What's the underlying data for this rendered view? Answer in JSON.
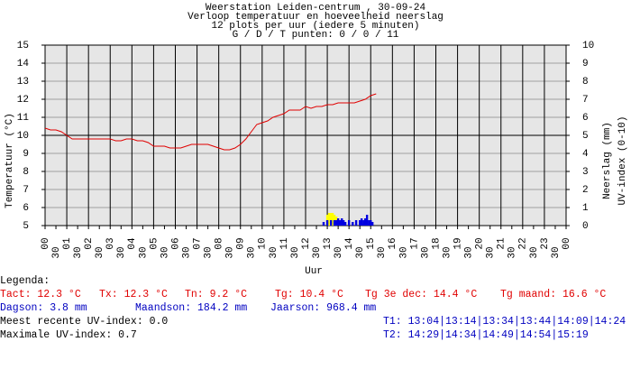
{
  "chart_data": {
    "type": "line",
    "title_lines": [
      "Weerstation Leiden-centrum , 30-09-24",
      "Verloop temperatuur en hoeveelheid neerslag",
      "12 plots per uur (iedere 5 minuten)",
      "G / D / T punten: 0 / 0 / 11"
    ],
    "x_label": "Uur",
    "y_label": "Temperatuur (°C)",
    "y2_labels": [
      "Neerslag (mm)",
      "UV-index (0-10)"
    ],
    "xlim": [
      0,
      24
    ],
    "xticks": [
      {
        "value": 0,
        "label": "00"
      },
      {
        "value": 0.5,
        "label": "30"
      },
      {
        "value": 1,
        "label": "01"
      },
      {
        "value": 1.5,
        "label": "30"
      },
      {
        "value": 2,
        "label": "02"
      },
      {
        "value": 2.5,
        "label": "30"
      },
      {
        "value": 3,
        "label": "03"
      },
      {
        "value": 3.5,
        "label": "30"
      },
      {
        "value": 4,
        "label": "04"
      },
      {
        "value": 4.5,
        "label": "30"
      },
      {
        "value": 5,
        "label": "05"
      },
      {
        "value": 5.5,
        "label": "30"
      },
      {
        "value": 6,
        "label": "06"
      },
      {
        "value": 6.5,
        "label": "30"
      },
      {
        "value": 7,
        "label": "07"
      },
      {
        "value": 7.5,
        "label": "30"
      },
      {
        "value": 8,
        "label": "08"
      },
      {
        "value": 8.5,
        "label": "30"
      },
      {
        "value": 9,
        "label": "09"
      },
      {
        "value": 9.5,
        "label": "30"
      },
      {
        "value": 10,
        "label": "10"
      },
      {
        "value": 10.5,
        "label": "30"
      },
      {
        "value": 11,
        "label": "11"
      },
      {
        "value": 11.5,
        "label": "30"
      },
      {
        "value": 12,
        "label": "12"
      },
      {
        "value": 12.5,
        "label": "30"
      },
      {
        "value": 13,
        "label": "13"
      },
      {
        "value": 13.5,
        "label": "30"
      },
      {
        "value": 14,
        "label": "14"
      },
      {
        "value": 14.5,
        "label": "30"
      },
      {
        "value": 15,
        "label": "15"
      },
      {
        "value": 15.5,
        "label": "30"
      },
      {
        "value": 16,
        "label": "16"
      },
      {
        "value": 16.5,
        "label": "30"
      },
      {
        "value": 17,
        "label": "17"
      },
      {
        "value": 17.5,
        "label": "30"
      },
      {
        "value": 18,
        "label": "18"
      },
      {
        "value": 18.5,
        "label": "30"
      },
      {
        "value": 19,
        "label": "19"
      },
      {
        "value": 19.5,
        "label": "30"
      },
      {
        "value": 20,
        "label": "20"
      },
      {
        "value": 20.5,
        "label": "30"
      },
      {
        "value": 21,
        "label": "21"
      },
      {
        "value": 21.5,
        "label": "30"
      },
      {
        "value": 22,
        "label": "22"
      },
      {
        "value": 22.5,
        "label": "30"
      },
      {
        "value": 23,
        "label": "23"
      },
      {
        "value": 23.5,
        "label": "30"
      },
      {
        "value": 24,
        "label": "00"
      }
    ],
    "ylim": [
      5,
      15
    ],
    "yticks": [
      5,
      6,
      7,
      8,
      9,
      10,
      11,
      12,
      13,
      14,
      15
    ],
    "y2lim": [
      0,
      10
    ],
    "y2ticks": [
      0,
      1,
      2,
      3,
      4,
      5,
      6,
      7,
      8,
      9,
      10
    ],
    "grid": true,
    "series": [
      {
        "type": "line",
        "color": "#e00000",
        "x": [
          0,
          0.25,
          0.5,
          0.75,
          1,
          1.25,
          1.5,
          1.75,
          2,
          2.25,
          2.5,
          2.75,
          3,
          3.25,
          3.5,
          3.75,
          4,
          4.25,
          4.5,
          4.75,
          5,
          5.25,
          5.5,
          5.75,
          6,
          6.25,
          6.5,
          6.75,
          7,
          7.25,
          7.5,
          7.75,
          8,
          8.25,
          8.5,
          8.75,
          9,
          9.25,
          9.5,
          9.75,
          10,
          10.25,
          10.5,
          10.75,
          11,
          11.25,
          11.5,
          11.75,
          12,
          12.25,
          12.5,
          12.75,
          13,
          13.25,
          13.5,
          13.75,
          14,
          14.25,
          14.5,
          14.75,
          15,
          15.25
        ],
        "values": [
          10.4,
          10.3,
          10.3,
          10.2,
          10.0,
          9.8,
          9.8,
          9.8,
          9.8,
          9.8,
          9.8,
          9.8,
          9.8,
          9.7,
          9.7,
          9.8,
          9.8,
          9.7,
          9.7,
          9.6,
          9.4,
          9.4,
          9.4,
          9.3,
          9.3,
          9.3,
          9.4,
          9.5,
          9.5,
          9.5,
          9.5,
          9.4,
          9.3,
          9.2,
          9.2,
          9.3,
          9.5,
          9.8,
          10.2,
          10.6,
          10.7,
          10.8,
          11.0,
          11.1,
          11.2,
          11.4,
          11.4,
          11.4,
          11.6,
          11.5,
          11.6,
          11.6,
          11.7,
          11.7,
          11.8,
          11.8,
          11.8,
          11.8,
          11.9,
          12.0,
          12.2,
          12.3
        ]
      },
      {
        "type": "bar",
        "axis": "y2",
        "color": "#0000e0",
        "x": [
          12.83,
          13.0,
          13.17,
          13.33,
          13.42,
          13.5,
          13.58,
          13.67,
          13.75,
          13.83,
          14.0,
          14.17,
          14.33,
          14.5,
          14.58,
          14.67,
          14.75,
          14.83,
          14.92,
          15.0,
          15.08
        ],
        "values": [
          0.2,
          0.3,
          0.3,
          0.3,
          0.3,
          0.4,
          0.3,
          0.4,
          0.3,
          0.2,
          0.3,
          0.2,
          0.3,
          0.3,
          0.4,
          0.3,
          0.4,
          0.6,
          0.3,
          0.3,
          0.2
        ]
      },
      {
        "type": "bar",
        "axis": "y2",
        "color": "#ffff00",
        "x": [
          13.0,
          13.08,
          13.17,
          13.25,
          13.33,
          13.42
        ],
        "values": [
          0.6,
          0.7,
          0.7,
          0.7,
          0.6,
          0.5
        ]
      }
    ]
  },
  "legend": {
    "heading": "Legenda:",
    "rows": [
      [
        "Tact: 12.3 °C",
        "Tx: 12.3 °C",
        "Tn: 9.2 °C",
        "Tg: 10.4 °C",
        "Tg 3e dec: 14.4 °C",
        "Tg maand: 16.6 °C"
      ],
      [
        "Dagson: 3.8 mm",
        "Maandson: 184.2 mm",
        "Jaarson: 968.4 mm"
      ],
      [
        "Meest recente UV-index: 0.0",
        "T1: 13:04|13:14|13:34|13:44|14:09|14:24"
      ],
      [
        "Maximale UV-index: 0.7",
        "T2: 14:29|14:34|14:49|14:54|15:19"
      ]
    ]
  }
}
